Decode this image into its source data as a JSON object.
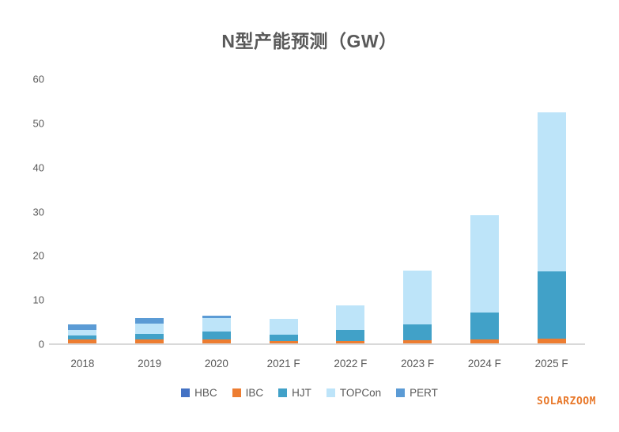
{
  "watermark": "SOLARZOOM",
  "watermark_color": "#E8782A",
  "chart_data": {
    "type": "bar",
    "stacked": true,
    "title": "N型产能预测（GW）",
    "xlabel": "",
    "ylabel": "",
    "categories": [
      "2018",
      "2019",
      "2020",
      "2021 F",
      "2022 F",
      "2023 F",
      "2024 F",
      "2025 F"
    ],
    "series": [
      {
        "name": "HBC",
        "color": "#4472C4",
        "values": [
          0,
          0,
          0,
          0,
          0,
          0,
          0,
          0
        ]
      },
      {
        "name": "IBC",
        "color": "#ED7D31",
        "values": [
          1.0,
          1.0,
          1.1,
          0.8,
          0.8,
          0.9,
          1.0,
          1.3
        ]
      },
      {
        "name": "HJT",
        "color": "#41A1C8",
        "values": [
          1.0,
          1.3,
          1.8,
          1.4,
          2.4,
          3.5,
          6.2,
          15.2
        ]
      },
      {
        "name": "TOPCon",
        "color": "#BDE4F9",
        "values": [
          1.2,
          2.4,
          3.0,
          3.6,
          5.6,
          12.3,
          22.0,
          36.0
        ]
      },
      {
        "name": "PERT",
        "color": "#5B9BD5",
        "values": [
          1.3,
          1.2,
          0.5,
          0,
          0,
          0,
          0,
          0
        ]
      }
    ],
    "totals": [
      4.5,
      5.9,
      6.4,
      5.8,
      8.8,
      16.7,
      29.2,
      52.5
    ],
    "ylim": [
      0,
      60
    ],
    "yticks": [
      0,
      10,
      20,
      30,
      40,
      50,
      60
    ],
    "grid": false,
    "legend_position": "bottom",
    "axis_line_color": "#D9D9D9",
    "text_color": "#595959"
  }
}
